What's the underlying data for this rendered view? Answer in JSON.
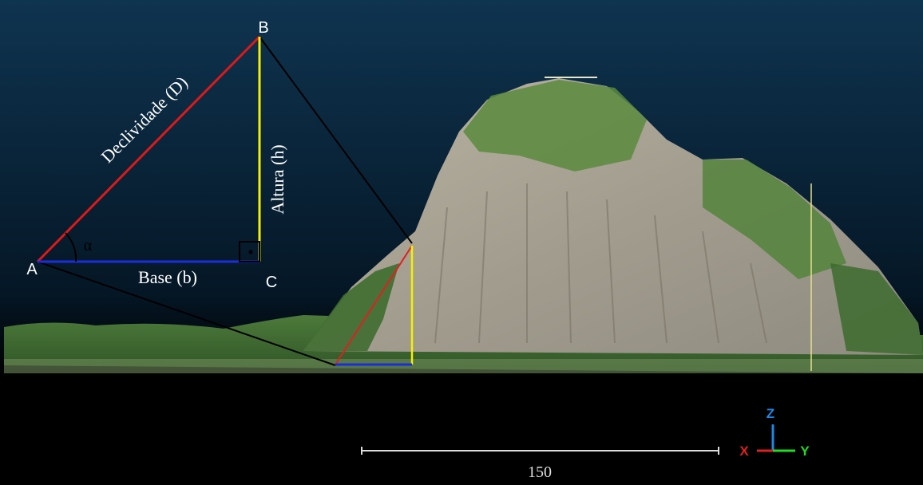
{
  "diagram": {
    "vertices": {
      "a": "A",
      "b": "B",
      "c": "C"
    },
    "angle": "α",
    "sides": {
      "slope": "Declividade (D)",
      "height": "Altura (h)",
      "base": "Base (b)"
    },
    "scale_bar": {
      "label": "150"
    },
    "axes": {
      "x": "X",
      "y": "Y",
      "z": "Z"
    }
  }
}
